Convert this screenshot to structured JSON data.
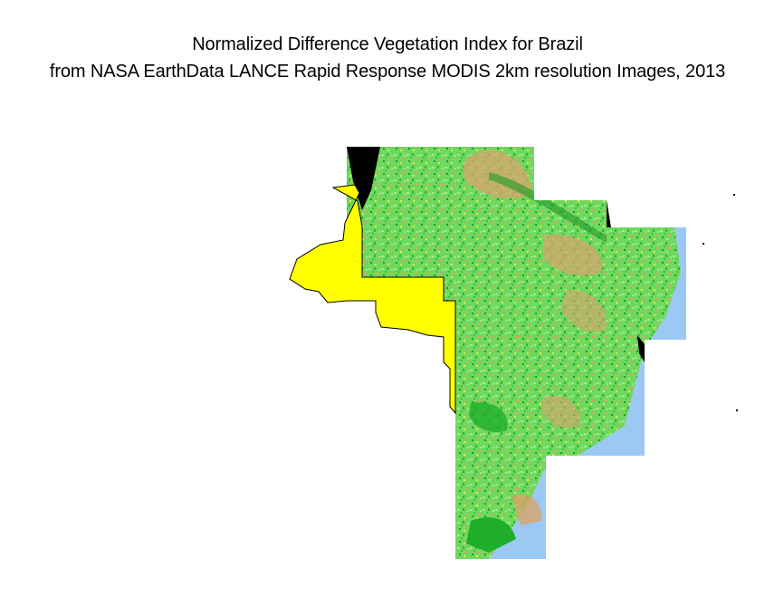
{
  "figure": {
    "title_line_1": "Normalized Difference Vegetation Index for Brazil",
    "title_line_2": "from NASA EarthData LANCE Rapid Response MODIS 2km resolution Images, 2013"
  },
  "legend_colors": {
    "water": "#9cc9f3",
    "dense_vegetation": "#1fae2a",
    "moderate_vegetation": "#5fd35a",
    "light_vegetation": "#a5e890",
    "sparse_vegetation": "#d8a46c",
    "no_data_region": "#ffff00",
    "no_data_black": "#000000"
  }
}
